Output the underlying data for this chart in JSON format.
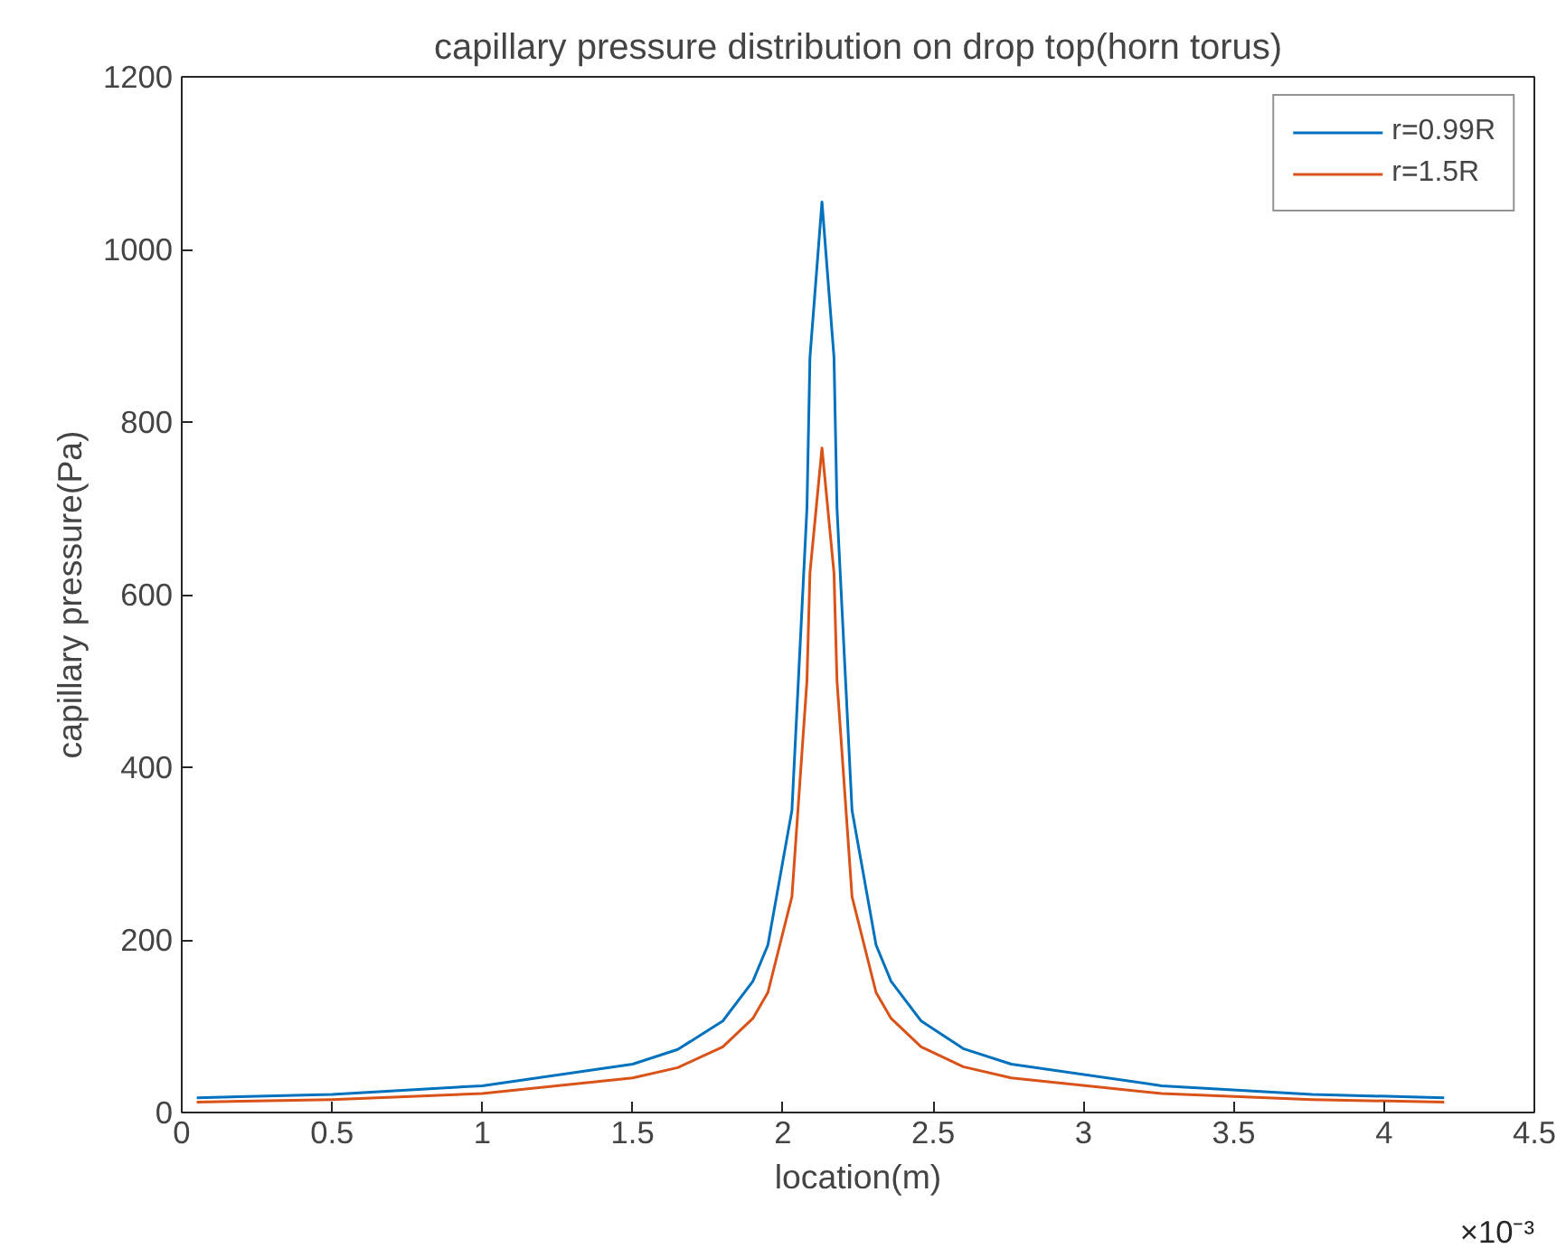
{
  "chart_data": {
    "type": "line",
    "title": "capillary pressure distribution on drop top(horn torus)",
    "xlabel": "location(m)",
    "ylabel": "capillary pressure(Pa)",
    "x": [
      0.05,
      0.5,
      1.0,
      1.5,
      1.65,
      1.8,
      1.9,
      1.95,
      2.03,
      2.08,
      2.09,
      2.13,
      2.17,
      2.18,
      2.23,
      2.31,
      2.36,
      2.46,
      2.6,
      2.76,
      3.26,
      3.76,
      4.2
    ],
    "series": [
      {
        "name": "r=0.99R",
        "color": "#0072bd",
        "values": [
          17,
          21,
          31,
          56,
          73,
          106,
          152,
          194,
          350,
          700,
          875,
          1055,
          875,
          700,
          350,
          194,
          152,
          106,
          74,
          56,
          31,
          21,
          17
        ]
      },
      {
        "name": "r=1.5R",
        "color": "#d95319",
        "values": [
          12,
          15,
          22,
          40,
          52,
          76,
          109,
          139,
          250,
          500,
          625,
          770,
          625,
          500,
          250,
          139,
          109,
          76,
          53,
          40,
          22,
          15,
          12
        ]
      }
    ],
    "xlim": [
      0,
      4.5
    ],
    "ylim": [
      0,
      1200
    ],
    "xticks": [
      0,
      0.5,
      1,
      1.5,
      2,
      2.5,
      3,
      3.5,
      4,
      4.5
    ],
    "yticks": [
      0,
      200,
      400,
      600,
      800,
      1000,
      1200
    ],
    "annotations": [
      "×10⁻³"
    ],
    "grid": false,
    "legend": "top right",
    "marker": "none",
    "line_style": "solid"
  }
}
